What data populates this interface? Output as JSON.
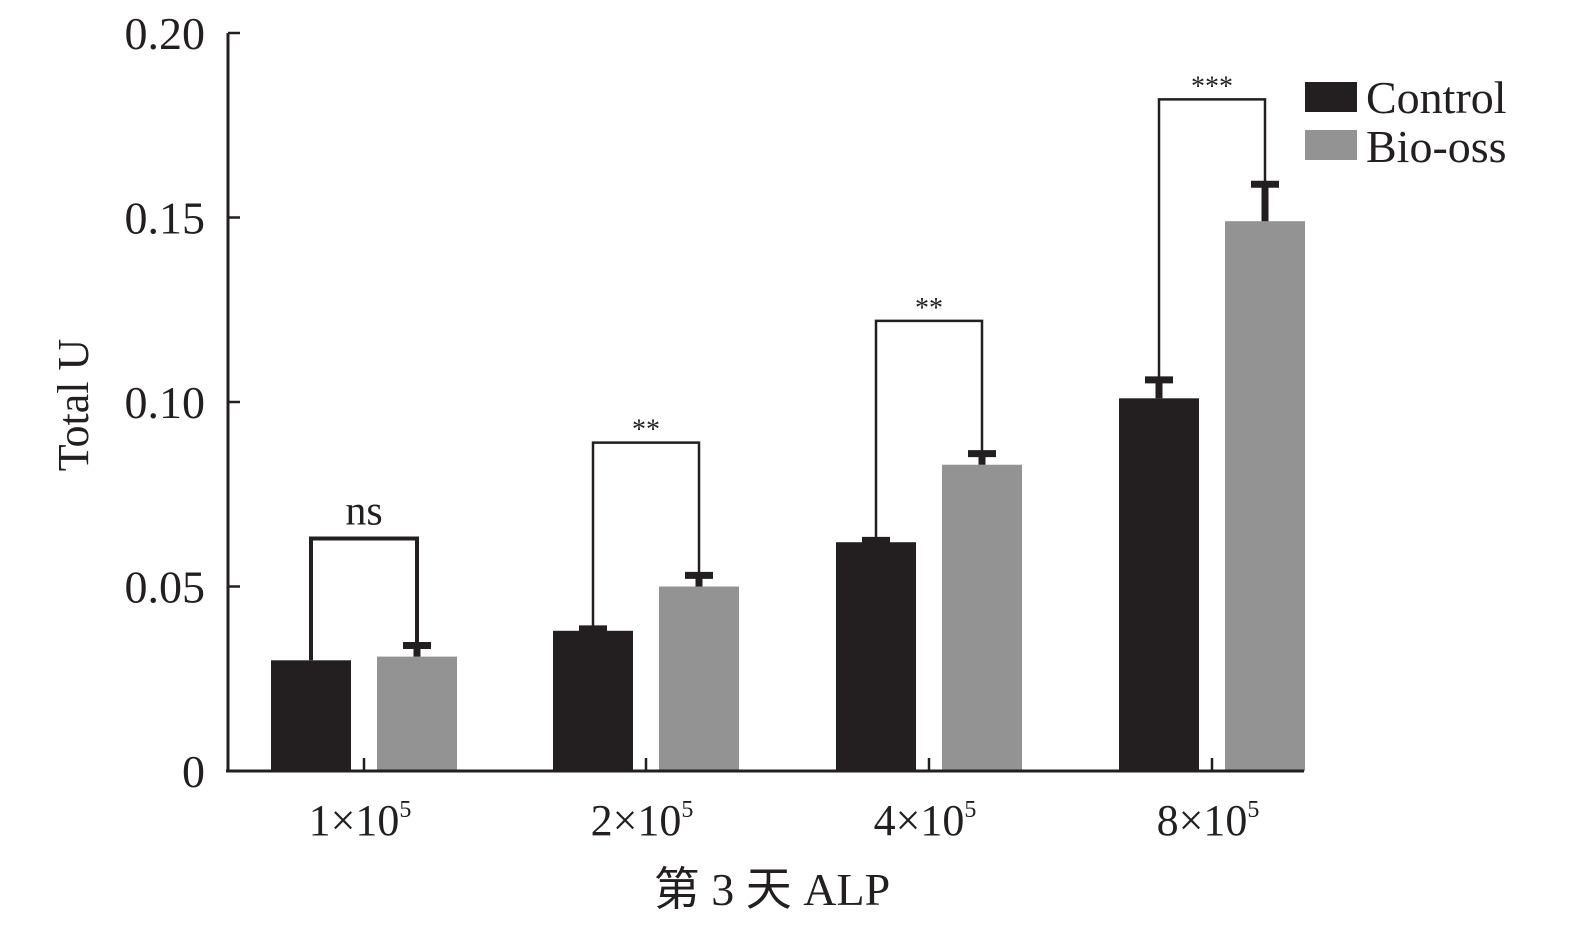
{
  "chart_data": {
    "type": "bar",
    "title": "",
    "xlabel": "第 3 天 ALP",
    "ylabel": "Total U",
    "ylim": [
      0,
      0.2
    ],
    "yticks": [
      "0",
      "0.05",
      "0.10",
      "0.15",
      "0.20"
    ],
    "ytick_values": [
      0,
      0.05,
      0.1,
      0.15,
      0.2
    ],
    "categories": [
      {
        "base": "1×10",
        "exp": "5"
      },
      {
        "base": "2×10",
        "exp": "5"
      },
      {
        "base": "4×10",
        "exp": "5"
      },
      {
        "base": "8×10",
        "exp": "5"
      }
    ],
    "series": [
      {
        "name": "Control",
        "color": "#231f20",
        "values": [
          0.03,
          0.038,
          0.062,
          0.101
        ],
        "errors": [
          0.0,
          0.0005,
          0.0005,
          0.005
        ]
      },
      {
        "name": "Bio-oss",
        "color": "#939393",
        "values": [
          0.031,
          0.05,
          0.083,
          0.149
        ],
        "errors": [
          0.003,
          0.003,
          0.003,
          0.01
        ]
      }
    ],
    "significance": [
      {
        "label": "ns",
        "level": 0.063
      },
      {
        "label": "**",
        "level": 0.089
      },
      {
        "label": "**",
        "level": 0.122
      },
      {
        "label": "***",
        "level": 0.182
      }
    ],
    "legend_position": "top-right",
    "grid": false
  }
}
